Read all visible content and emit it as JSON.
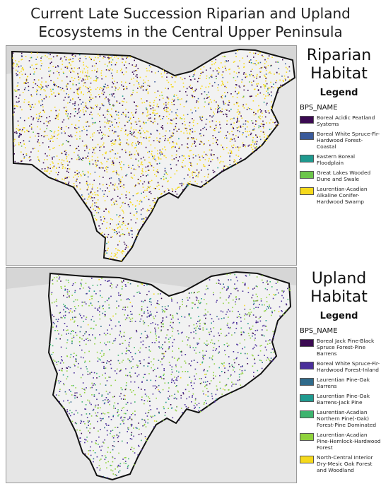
{
  "title_line1": "Current Late Succession Riparian and Upland",
  "title_line2": "Ecosystems in the Central Upper Peninsula",
  "riparian": {
    "title_line1": "Riparian",
    "title_line2": "Habitat",
    "legend_title": "Legend",
    "field_name": "BPS_NAME",
    "items": [
      {
        "label": "Boreal Acidic Peatland Systems",
        "color": "#3b0a52"
      },
      {
        "label": "Boreal White Spruce-Fir-Hardwood Forest-Coastal",
        "color": "#3a5a9a"
      },
      {
        "label": "Eastern Boreal Floodplain",
        "color": "#1f9a8f"
      },
      {
        "label": "Great Lakes Wooded Dune and Swale",
        "color": "#6cc64a"
      },
      {
        "label": "Laurentian-Acadian Alkaline Conifer-Hardwood Swamp",
        "color": "#f5d91c"
      }
    ]
  },
  "upland": {
    "title_line1": "Upland",
    "title_line2": "Habitat",
    "legend_title": "Legend",
    "field_name": "BPS_NAME",
    "items": [
      {
        "label": "Boreal Jack Pine-Black Spruce Forest-Pine Barrens",
        "color": "#3b0a52"
      },
      {
        "label": "Boreal White Spruce-Fir-Hardwood Forest-Inland",
        "color": "#4a2f9a"
      },
      {
        "label": "Laurentian Pine-Oak Barrens",
        "color": "#2f6a8a"
      },
      {
        "label": "Laurentian Pine-Oak Barrens-Jack Pine",
        "color": "#1f9a8f"
      },
      {
        "label": "Laurentian-Acadian Northern Pine(-Oak) Forest-Pine Dominated",
        "color": "#3cb46e"
      },
      {
        "label": "Laurentian-Acadian Pine-Hemlock-Hardwood Forest",
        "color": "#8fd23c"
      },
      {
        "label": "North-Central Interior Dry-Mesic Oak Forest and Woodland",
        "color": "#f5d91c"
      }
    ]
  }
}
